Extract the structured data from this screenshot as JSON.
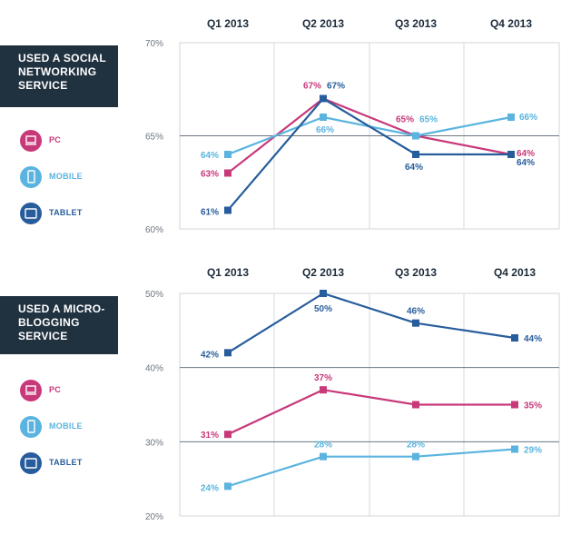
{
  "colors": {
    "pc": "#c8397a",
    "mobile": "#5ab4df",
    "tablet": "#275d9c",
    "title_bg": "#203140"
  },
  "chart_data": [
    {
      "type": "line",
      "title": "USED A SOCIAL NETWORKING SERVICE",
      "title_lines": [
        "USED A SOCIAL",
        "NETWORKING",
        "SERVICE"
      ],
      "categories": [
        "Q1 2013",
        "Q2 2013",
        "Q3 2013",
        "Q4 2013"
      ],
      "ylim": [
        60,
        70
      ],
      "yticks": [
        "60%",
        "65%",
        "70%"
      ],
      "grid": true,
      "legend_position": "left",
      "series": [
        {
          "name": "PC",
          "key": "pc",
          "values": [
            63,
            67,
            65,
            64
          ],
          "labels": [
            "63%",
            "67%",
            "65%",
            "64%"
          ]
        },
        {
          "name": "MOBILE",
          "key": "mobile",
          "values": [
            64,
            66,
            65,
            66
          ],
          "labels": [
            "64%",
            "66%",
            "65%",
            "66%"
          ]
        },
        {
          "name": "TABLET",
          "key": "tablet",
          "values": [
            61,
            67,
            64,
            64
          ],
          "labels": [
            "61%",
            "67%",
            "64%",
            "64%"
          ]
        }
      ]
    },
    {
      "type": "line",
      "title": "USED A MICRO-BLOGGING SERVICE",
      "title_lines": [
        "USED A MICRO-",
        "BLOGGING",
        "SERVICE"
      ],
      "categories": [
        "Q1 2013",
        "Q2 2013",
        "Q3 2013",
        "Q4 2013"
      ],
      "ylim": [
        20,
        50
      ],
      "yticks": [
        "20%",
        "30%",
        "40%",
        "50%"
      ],
      "grid": true,
      "legend_position": "left",
      "series": [
        {
          "name": "PC",
          "key": "pc",
          "values": [
            31,
            37,
            35,
            35
          ],
          "labels": [
            "31%",
            "37%",
            "",
            "35%"
          ]
        },
        {
          "name": "MOBILE",
          "key": "mobile",
          "values": [
            24,
            28,
            28,
            29
          ],
          "labels": [
            "24%",
            "28%",
            "28%",
            "29%"
          ]
        },
        {
          "name": "TABLET",
          "key": "tablet",
          "values": [
            42,
            50,
            46,
            44
          ],
          "labels": [
            "42%",
            "50%",
            "46%",
            "44%"
          ]
        }
      ]
    }
  ]
}
